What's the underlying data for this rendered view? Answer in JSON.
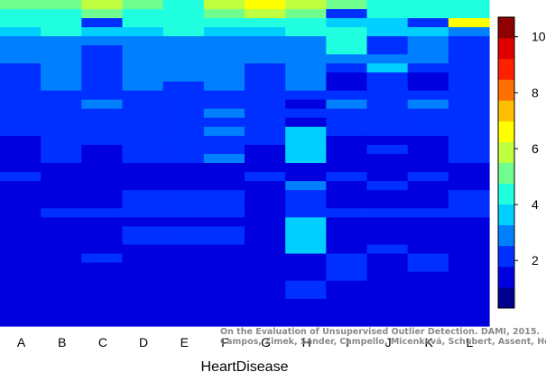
{
  "chart_data": {
    "type": "heatmap",
    "title": "",
    "xlabel": "HeartDisease",
    "ylabel": "",
    "columns": [
      "A",
      "B",
      "C",
      "D",
      "E",
      "F",
      "G",
      "H",
      "I",
      "J",
      "K",
      "L"
    ],
    "colorbar": {
      "min": 0.3,
      "max": 10.7,
      "ticks": [
        2,
        4,
        6,
        8,
        10
      ],
      "levels": 11
    },
    "palette": [
      "#00008f",
      "#0000df",
      "#0030ff",
      "#0080ff",
      "#00cfff",
      "#20ffdf",
      "#70ff8f",
      "#bfff40",
      "#ffff00",
      "#ffbf00",
      "#ff7000",
      "#ff2000",
      "#df0000",
      "#8f0000"
    ],
    "values": [
      [
        4.8,
        4.8,
        5.5,
        4.8,
        4.5,
        5.5,
        6.5,
        5.5,
        4.8,
        4.5,
        4.5,
        4.5
      ],
      [
        4.3,
        4.3,
        4.8,
        4.3,
        4.3,
        4.8,
        5.5,
        4.8,
        2.5,
        4.3,
        4.3,
        4.3
      ],
      [
        4.1,
        4.1,
        2.0,
        4.1,
        4.1,
        4.1,
        4.1,
        4.1,
        3.5,
        3.5,
        2.2,
        6.5
      ],
      [
        3.3,
        4.3,
        3.3,
        3.8,
        4.3,
        3.8,
        3.3,
        4.3,
        4.4,
        3.3,
        3.3,
        3.0
      ],
      [
        3.2,
        3.2,
        3.2,
        3.2,
        3.2,
        3.2,
        3.2,
        3.2,
        4.6,
        2.0,
        3.2,
        2.0
      ],
      [
        3.1,
        3.1,
        2.0,
        3.1,
        3.1,
        3.1,
        3.1,
        3.1,
        4.3,
        2.0,
        3.1,
        2.0
      ],
      [
        3.0,
        3.0,
        2.0,
        3.0,
        3.0,
        3.0,
        3.0,
        3.0,
        3.0,
        3.0,
        3.0,
        2.0
      ],
      [
        2.0,
        3.0,
        2.0,
        3.0,
        3.0,
        3.0,
        2.0,
        3.0,
        2.0,
        3.5,
        2.0,
        2.0
      ],
      [
        2.0,
        3.0,
        2.0,
        3.0,
        3.0,
        3.0,
        2.0,
        3.0,
        1.2,
        2.0,
        1.2,
        2.0
      ],
      [
        2.0,
        3.0,
        2.0,
        3.0,
        2.0,
        3.0,
        2.0,
        3.0,
        1.2,
        2.0,
        1.2,
        2.0
      ],
      [
        2.0,
        2.0,
        2.0,
        2.0,
        2.0,
        2.0,
        2.0,
        2.0,
        2.0,
        2.0,
        2.0,
        2.0
      ],
      [
        2.0,
        2.0,
        3.0,
        2.0,
        2.0,
        2.0,
        2.0,
        1.2,
        3.0,
        2.0,
        3.0,
        2.0
      ],
      [
        2.0,
        2.0,
        2.0,
        2.0,
        2.0,
        3.0,
        2.0,
        2.0,
        2.0,
        2.0,
        2.0,
        2.0
      ],
      [
        2.0,
        2.0,
        2.0,
        2.0,
        2.0,
        2.0,
        2.0,
        1.1,
        2.0,
        2.0,
        2.0,
        2.0
      ],
      [
        2.0,
        2.0,
        2.0,
        2.0,
        2.0,
        3.0,
        2.0,
        3.6,
        2.0,
        2.0,
        2.0,
        2.0
      ],
      [
        1.2,
        2.0,
        2.0,
        2.0,
        2.0,
        2.0,
        2.0,
        3.6,
        1.2,
        1.2,
        1.2,
        2.0
      ],
      [
        1.2,
        2.0,
        1.2,
        2.0,
        2.0,
        2.0,
        1.2,
        3.6,
        1.2,
        2.0,
        1.2,
        2.0
      ],
      [
        1.2,
        2.0,
        1.2,
        2.0,
        2.0,
        3.0,
        1.2,
        3.6,
        1.2,
        1.2,
        1.2,
        2.0
      ],
      [
        1.2,
        1.2,
        1.2,
        1.2,
        1.2,
        1.2,
        1.2,
        1.2,
        1.2,
        1.2,
        1.2,
        1.2
      ],
      [
        2.0,
        1.2,
        1.2,
        1.2,
        1.2,
        1.2,
        2.0,
        1.2,
        2.0,
        1.2,
        2.0,
        1.2
      ],
      [
        1.2,
        1.2,
        1.2,
        1.2,
        1.2,
        1.2,
        1.2,
        3.0,
        1.2,
        2.0,
        1.2,
        1.2
      ],
      [
        1.2,
        1.2,
        1.2,
        2.0,
        2.0,
        2.0,
        1.2,
        2.0,
        1.2,
        1.2,
        1.2,
        2.0
      ],
      [
        1.2,
        1.2,
        1.2,
        2.0,
        2.0,
        2.0,
        1.2,
        2.0,
        1.2,
        1.2,
        1.2,
        2.0
      ],
      [
        1.2,
        2.0,
        2.0,
        2.0,
        2.0,
        2.0,
        1.2,
        2.0,
        2.0,
        2.0,
        2.0,
        2.0
      ],
      [
        1.2,
        1.2,
        1.2,
        1.2,
        1.2,
        1.2,
        1.2,
        3.6,
        1.2,
        1.2,
        1.2,
        1.2
      ],
      [
        1.2,
        1.2,
        1.2,
        2.0,
        2.0,
        2.0,
        1.2,
        3.6,
        1.2,
        1.2,
        1.2,
        1.2
      ],
      [
        1.2,
        1.2,
        1.2,
        2.0,
        2.0,
        2.0,
        1.2,
        3.6,
        1.2,
        1.2,
        1.2,
        1.2
      ],
      [
        1.2,
        1.2,
        1.2,
        1.2,
        1.2,
        1.2,
        1.2,
        3.6,
        1.2,
        2.0,
        1.2,
        1.2
      ],
      [
        1.2,
        1.2,
        2.0,
        1.2,
        1.2,
        1.2,
        1.2,
        1.2,
        2.0,
        1.2,
        2.0,
        1.2
      ],
      [
        1.2,
        1.2,
        1.2,
        1.2,
        1.2,
        1.2,
        1.2,
        1.2,
        2.0,
        1.2,
        2.0,
        1.2
      ],
      [
        1.2,
        1.2,
        1.2,
        1.2,
        1.2,
        1.2,
        1.2,
        1.2,
        2.0,
        1.2,
        1.2,
        1.2
      ],
      [
        1.2,
        1.2,
        1.2,
        1.2,
        1.2,
        1.2,
        1.2,
        2.0,
        1.2,
        1.2,
        1.2,
        1.2
      ],
      [
        1.2,
        1.2,
        1.2,
        1.2,
        1.2,
        1.2,
        1.2,
        2.0,
        1.2,
        1.2,
        1.2,
        1.2
      ],
      [
        1.2,
        1.2,
        1.2,
        1.2,
        1.2,
        1.2,
        1.2,
        1.2,
        1.2,
        1.2,
        1.2,
        1.2
      ],
      [
        1.2,
        1.2,
        1.2,
        1.2,
        1.2,
        1.2,
        1.2,
        1.2,
        1.2,
        1.2,
        1.2,
        1.2
      ],
      [
        1.2,
        1.2,
        1.2,
        1.2,
        1.2,
        1.2,
        1.2,
        1.2,
        1.2,
        1.2,
        1.2,
        1.2
      ]
    ],
    "grid": false,
    "legend": "right colorbar"
  },
  "watermark": {
    "line1": "On the Evaluation of Unsupervised Outlier Detection. DAMI, 2015.",
    "line2": "Campos, Zimek, Sander, Campello, Micenková, Schubert, Assent, Houle"
  }
}
